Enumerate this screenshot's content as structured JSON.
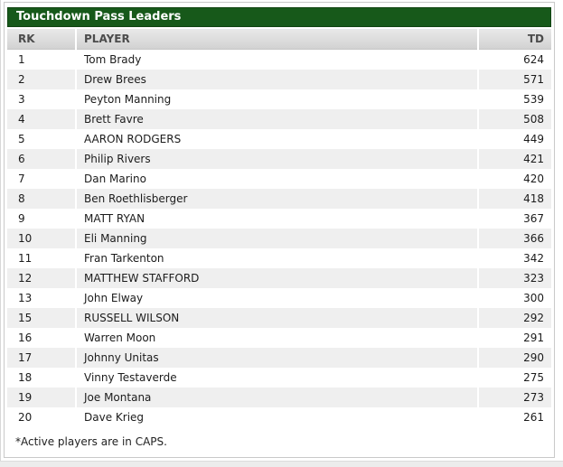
{
  "chart_data": {
    "type": "table",
    "title": "Touchdown Pass Leaders",
    "footnote": "*Active players are in CAPS.",
    "columns": [
      {
        "key": "rk",
        "label": "RK",
        "align": "left"
      },
      {
        "key": "player",
        "label": "PLAYER",
        "align": "left"
      },
      {
        "key": "td",
        "label": "TD",
        "align": "right"
      }
    ],
    "rows": [
      {
        "rk": "1",
        "player": "Tom Brady",
        "td": "624"
      },
      {
        "rk": "2",
        "player": "Drew Brees",
        "td": "571"
      },
      {
        "rk": "3",
        "player": "Peyton Manning",
        "td": "539"
      },
      {
        "rk": "4",
        "player": "Brett Favre",
        "td": "508"
      },
      {
        "rk": "5",
        "player": "AARON RODGERS",
        "td": "449"
      },
      {
        "rk": "6",
        "player": "Philip Rivers",
        "td": "421"
      },
      {
        "rk": "7",
        "player": "Dan Marino",
        "td": "420"
      },
      {
        "rk": "8",
        "player": "Ben Roethlisberger",
        "td": "418"
      },
      {
        "rk": "9",
        "player": "MATT RYAN",
        "td": "367"
      },
      {
        "rk": "10",
        "player": "Eli Manning",
        "td": "366"
      },
      {
        "rk": "11",
        "player": "Fran Tarkenton",
        "td": "342"
      },
      {
        "rk": "12",
        "player": "MATTHEW STAFFORD",
        "td": "323"
      },
      {
        "rk": "13",
        "player": "John Elway",
        "td": "300"
      },
      {
        "rk": "15",
        "player": "RUSSELL WILSON",
        "td": "292"
      },
      {
        "rk": "16",
        "player": "Warren Moon",
        "td": "291"
      },
      {
        "rk": "17",
        "player": "Johnny Unitas",
        "td": "290"
      },
      {
        "rk": "18",
        "player": "Vinny Testaverde",
        "td": "275"
      },
      {
        "rk": "19",
        "player": "Joe Montana",
        "td": "273"
      },
      {
        "rk": "20",
        "player": "Dave Krieg",
        "td": "261"
      }
    ]
  },
  "colors": {
    "title_bar_green": "#17591A",
    "title_text": "#FFFFFF",
    "row_stripe_gray": "#EFEFEF",
    "header_row_gradient_top": "#E9E9E9",
    "header_row_gradient_bottom": "#D2D2D2",
    "widget_border": "#C9C9C9"
  }
}
